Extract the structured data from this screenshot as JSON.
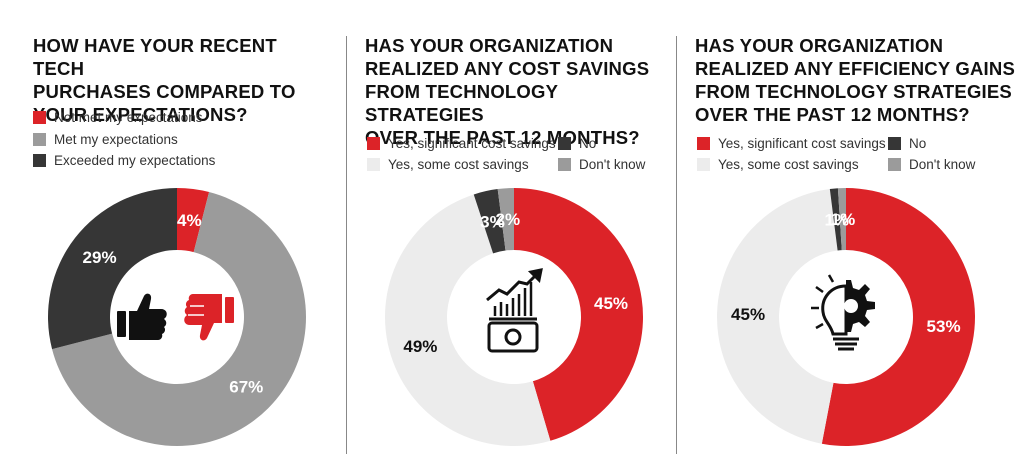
{
  "colors": {
    "red": "#dc2328",
    "mid_gray": "#9b9b9b",
    "dark_gray": "#363636",
    "light_gray": "#ececec"
  },
  "chart_data": [
    {
      "type": "pie",
      "title": "HOW HAVE YOUR RECENT TECH\nPURCHASES COMPARED TO\nYOUR EXPECTATIONS?",
      "legend": [
        "Not met my expectations",
        "Met my expectations",
        "Exceeded my expectations"
      ],
      "series": [
        {
          "name": "Not met my expectations",
          "value": 4,
          "label": "4%",
          "color": "#dc2328"
        },
        {
          "name": "Met my expectations",
          "value": 67,
          "label": "67%",
          "color": "#9b9b9b"
        },
        {
          "name": "Exceeded my expectations",
          "value": 29,
          "label": "29%",
          "color": "#363636"
        }
      ],
      "center_icon": "thumbs-up-down-icon"
    },
    {
      "type": "pie",
      "title": "HAS YOUR ORGANIZATION\nREALIZED ANY COST SAVINGS\nFROM TECHNOLOGY STRATEGIES\nOVER THE PAST 12 MONTHS?",
      "legend": [
        "Yes, significant cost savings",
        "No",
        "Yes, some cost savings",
        "Don't know"
      ],
      "series": [
        {
          "name": "Yes, significant cost savings",
          "value": 45,
          "label": "45%",
          "color": "#dc2328"
        },
        {
          "name": "Yes, some cost savings",
          "value": 49,
          "label": "49%",
          "color": "#ececec"
        },
        {
          "name": "No",
          "value": 3,
          "label": "3%",
          "color": "#363636"
        },
        {
          "name": "Don't know",
          "value": 2,
          "label": "2%",
          "color": "#9b9b9b"
        }
      ],
      "center_icon": "money-growth-chart-icon"
    },
    {
      "type": "pie",
      "title": "HAS YOUR ORGANIZATION\nREALIZED ANY EFFICIENCY GAINS\nFROM TECHNOLOGY STRATEGIES\nOVER THE PAST 12 MONTHS?",
      "legend": [
        "Yes, significant cost savings",
        "No",
        "Yes, some cost savings",
        "Don't know"
      ],
      "series": [
        {
          "name": "Yes, significant cost savings",
          "value": 53,
          "label": "53%",
          "color": "#dc2328"
        },
        {
          "name": "Yes, some cost savings",
          "value": 45,
          "label": "45%",
          "color": "#ececec"
        },
        {
          "name": "No",
          "value": 1,
          "label": "1%",
          "color": "#363636"
        },
        {
          "name": "Don't know",
          "value": 1,
          "label": "1%",
          "color": "#9b9b9b"
        }
      ],
      "center_icon": "lightbulb-gear-icon"
    }
  ]
}
